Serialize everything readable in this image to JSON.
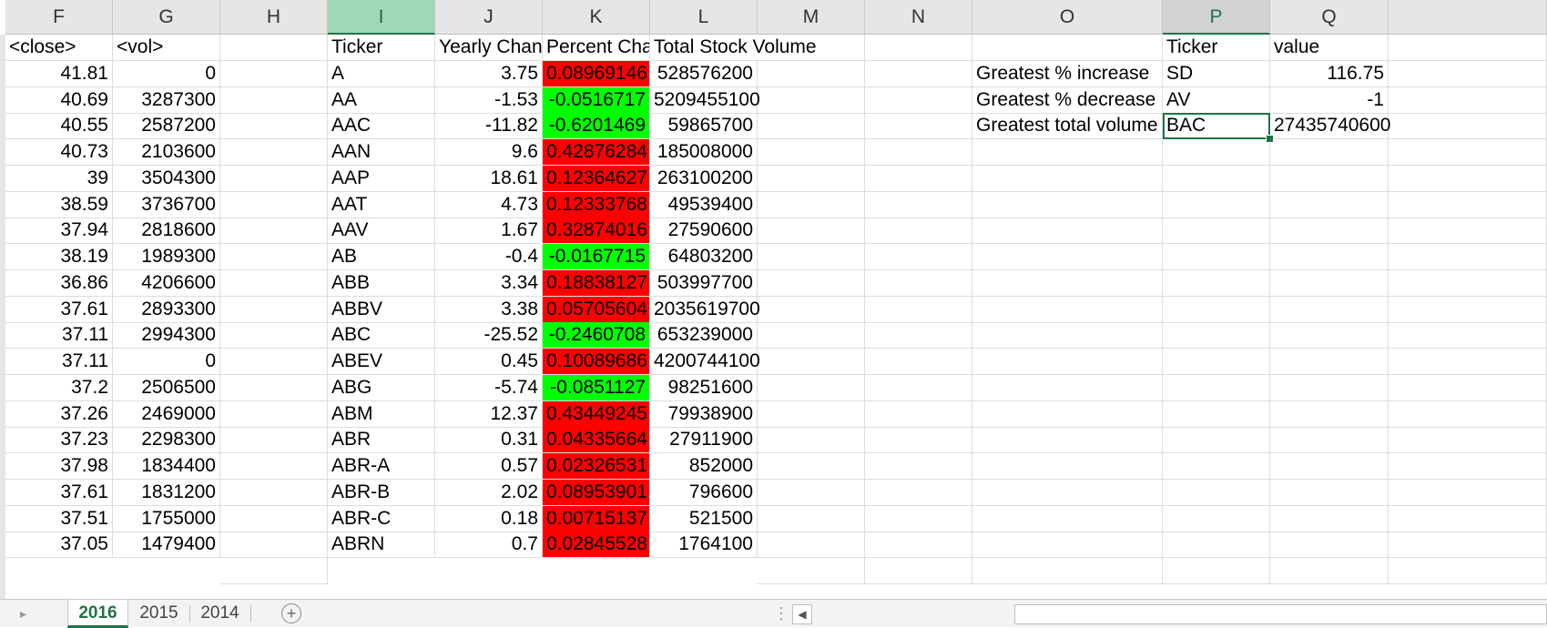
{
  "colors": {
    "accent": "#217346",
    "increase": "#ff0000",
    "decrease": "#00ff00"
  },
  "columns": [
    "F",
    "G",
    "H",
    "I",
    "J",
    "K",
    "L",
    "M",
    "N",
    "O",
    "P",
    "Q"
  ],
  "headers": {
    "F": "<close>",
    "G": "<vol>",
    "I": "Ticker",
    "J": "Yearly Change",
    "K": "Percent Change",
    "L": "Total Stock Volume",
    "P": "Ticker",
    "Q": "value"
  },
  "rows": [
    {
      "close": "41.81",
      "vol": "0",
      "ticker": "A",
      "change": "3.75",
      "pct": "0.08969146",
      "total": "528576200"
    },
    {
      "close": "40.69",
      "vol": "3287300",
      "ticker": "AA",
      "change": "-1.53",
      "pct": "-0.0516717",
      "total": "5209455100"
    },
    {
      "close": "40.55",
      "vol": "2587200",
      "ticker": "AAC",
      "change": "-11.82",
      "pct": "-0.6201469",
      "total": "59865700"
    },
    {
      "close": "40.73",
      "vol": "2103600",
      "ticker": "AAN",
      "change": "9.6",
      "pct": "0.42876284",
      "total": "185008000"
    },
    {
      "close": "39",
      "vol": "3504300",
      "ticker": "AAP",
      "change": "18.61",
      "pct": "0.12364627",
      "total": "263100200"
    },
    {
      "close": "38.59",
      "vol": "3736700",
      "ticker": "AAT",
      "change": "4.73",
      "pct": "0.12333768",
      "total": "49539400"
    },
    {
      "close": "37.94",
      "vol": "2818600",
      "ticker": "AAV",
      "change": "1.67",
      "pct": "0.32874016",
      "total": "27590600"
    },
    {
      "close": "38.19",
      "vol": "1989300",
      "ticker": "AB",
      "change": "-0.4",
      "pct": "-0.0167715",
      "total": "64803200"
    },
    {
      "close": "36.86",
      "vol": "4206600",
      "ticker": "ABB",
      "change": "3.34",
      "pct": "0.18838127",
      "total": "503997700"
    },
    {
      "close": "37.61",
      "vol": "2893300",
      "ticker": "ABBV",
      "change": "3.38",
      "pct": "0.05705604",
      "total": "2035619700"
    },
    {
      "close": "37.11",
      "vol": "2994300",
      "ticker": "ABC",
      "change": "-25.52",
      "pct": "-0.2460708",
      "total": "653239000"
    },
    {
      "close": "37.11",
      "vol": "0",
      "ticker": "ABEV",
      "change": "0.45",
      "pct": "0.10089686",
      "total": "4200744100"
    },
    {
      "close": "37.2",
      "vol": "2506500",
      "ticker": "ABG",
      "change": "-5.74",
      "pct": "-0.0851127",
      "total": "98251600"
    },
    {
      "close": "37.26",
      "vol": "2469000",
      "ticker": "ABM",
      "change": "12.37",
      "pct": "0.43449245",
      "total": "79938900"
    },
    {
      "close": "37.23",
      "vol": "2298300",
      "ticker": "ABR",
      "change": "0.31",
      "pct": "0.04335664",
      "total": "27911900"
    },
    {
      "close": "37.98",
      "vol": "1834400",
      "ticker": "ABR-A",
      "change": "0.57",
      "pct": "0.02326531",
      "total": "852000"
    },
    {
      "close": "37.61",
      "vol": "1831200",
      "ticker": "ABR-B",
      "change": "2.02",
      "pct": "0.08953901",
      "total": "796600"
    },
    {
      "close": "37.51",
      "vol": "1755000",
      "ticker": "ABR-C",
      "change": "0.18",
      "pct": "0.00715137",
      "total": "521500"
    },
    {
      "close": "37.05",
      "vol": "1479400",
      "ticker": "ABRN",
      "change": "0.7",
      "pct": "0.02845528",
      "total": "1764100"
    }
  ],
  "summary": [
    {
      "label": "Greatest % increase",
      "ticker": "SD",
      "value": "116.75"
    },
    {
      "label": "Greatest % decrease",
      "ticker": "AV",
      "value": "-1"
    },
    {
      "label": "Greatest total volume",
      "ticker": "BAC",
      "value": "27435740600"
    }
  ],
  "tabs": [
    "2016",
    "2015",
    "2014"
  ],
  "active_tab": "2016"
}
